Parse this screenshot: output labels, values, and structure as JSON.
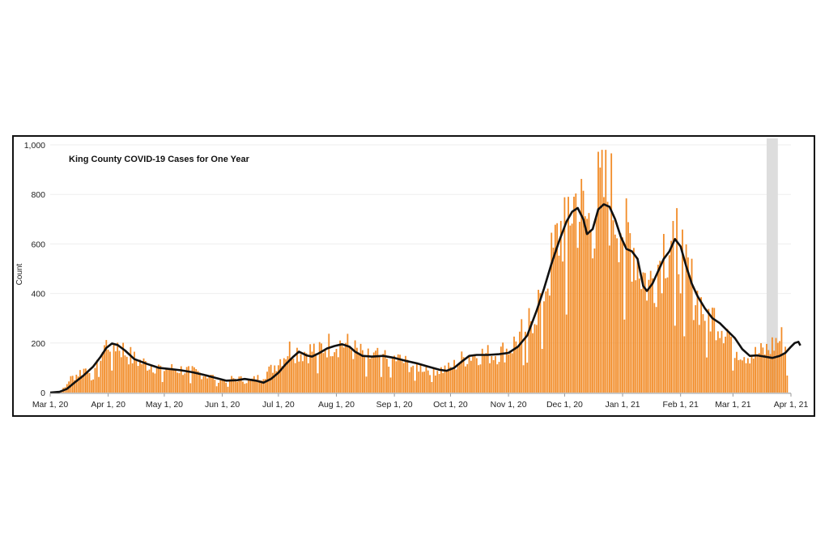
{
  "chart_data": {
    "type": "bar",
    "title": "King County COVID-19 Cases for One Year",
    "ylabel": "Count",
    "xlabel": "",
    "ylim": [
      0,
      1000
    ],
    "yticks": [
      "0",
      "200",
      "400",
      "600",
      "800",
      "1,000"
    ],
    "ytick_values": [
      0,
      200,
      400,
      600,
      800,
      1000
    ],
    "xticks": [
      {
        "label": "Mar 1, 20",
        "day": 0
      },
      {
        "label": "Apr 1, 20",
        "day": 31
      },
      {
        "label": "May 1, 20",
        "day": 61
      },
      {
        "label": "Jun 1, 20",
        "day": 92
      },
      {
        "label": "Jul 1, 20",
        "day": 122
      },
      {
        "label": "Aug 1, 20",
        "day": 153
      },
      {
        "label": "Sep 1, 20",
        "day": 184
      },
      {
        "label": "Oct 1, 20",
        "day": 214
      },
      {
        "label": "Nov 1, 20",
        "day": 245
      },
      {
        "label": "Dec 1, 20",
        "day": 275
      },
      {
        "label": "Jan 1, 21",
        "day": 306
      },
      {
        "label": "Feb 1, 21",
        "day": 337
      },
      {
        "label": "Mar 1, 21",
        "day": 365
      },
      {
        "label": "Apr 1, 21",
        "day": 396
      }
    ],
    "bar_color": "#f28c28",
    "line_color": "#111111",
    "highlight_color": "#dddddd",
    "highlight_range": [
      383,
      389
    ],
    "series": [
      {
        "kind": "bar",
        "day_values_anchors": [
          [
            0,
            0
          ],
          [
            5,
            5
          ],
          [
            8,
            20
          ],
          [
            10,
            50
          ],
          [
            14,
            70
          ],
          [
            18,
            90
          ],
          [
            22,
            110
          ],
          [
            26,
            140
          ],
          [
            29,
            180
          ],
          [
            32,
            200
          ],
          [
            36,
            190
          ],
          [
            40,
            160
          ],
          [
            45,
            130
          ],
          [
            52,
            110
          ],
          [
            60,
            95
          ],
          [
            70,
            90
          ],
          [
            78,
            80
          ],
          [
            85,
            65
          ],
          [
            92,
            50
          ],
          [
            100,
            55
          ],
          [
            106,
            45
          ],
          [
            112,
            60
          ],
          [
            118,
            90
          ],
          [
            124,
            140
          ],
          [
            128,
            170
          ],
          [
            134,
            160
          ],
          [
            140,
            165
          ],
          [
            146,
            180
          ],
          [
            152,
            195
          ],
          [
            158,
            190
          ],
          [
            164,
            160
          ],
          [
            170,
            140
          ],
          [
            178,
            140
          ],
          [
            186,
            130
          ],
          [
            192,
            110
          ],
          [
            200,
            100
          ],
          [
            208,
            90
          ],
          [
            214,
            95
          ],
          [
            220,
            130
          ],
          [
            226,
            150
          ],
          [
            234,
            150
          ],
          [
            240,
            155
          ],
          [
            246,
            175
          ],
          [
            250,
            210
          ],
          [
            256,
            280
          ],
          [
            262,
            370
          ],
          [
            268,
            500
          ],
          [
            272,
            620
          ],
          [
            277,
            720
          ],
          [
            281,
            750
          ],
          [
            284,
            700
          ],
          [
            288,
            660
          ],
          [
            292,
            740
          ],
          [
            296,
            790
          ],
          [
            300,
            760
          ],
          [
            304,
            700
          ],
          [
            308,
            640
          ],
          [
            312,
            580
          ],
          [
            316,
            480
          ],
          [
            320,
            420
          ],
          [
            324,
            480
          ],
          [
            328,
            580
          ],
          [
            332,
            620
          ],
          [
            336,
            580
          ],
          [
            340,
            480
          ],
          [
            344,
            400
          ],
          [
            350,
            320
          ],
          [
            356,
            290
          ],
          [
            362,
            250
          ],
          [
            366,
            180
          ],
          [
            372,
            150
          ],
          [
            378,
            150
          ],
          [
            384,
            170
          ],
          [
            388,
            200
          ],
          [
            391,
            210
          ],
          [
            393,
            180
          ],
          [
            394,
            70
          ]
        ]
      },
      {
        "kind": "line",
        "name": "",
        "day_values_anchors": [
          [
            0,
            0
          ],
          [
            5,
            3
          ],
          [
            9,
            15
          ],
          [
            13,
            40
          ],
          [
            18,
            70
          ],
          [
            23,
            105
          ],
          [
            27,
            145
          ],
          [
            30,
            180
          ],
          [
            33,
            198
          ],
          [
            36,
            192
          ],
          [
            40,
            170
          ],
          [
            45,
            135
          ],
          [
            52,
            115
          ],
          [
            58,
            100
          ],
          [
            64,
            95
          ],
          [
            70,
            90
          ],
          [
            76,
            82
          ],
          [
            82,
            72
          ],
          [
            88,
            60
          ],
          [
            94,
            48
          ],
          [
            100,
            50
          ],
          [
            104,
            55
          ],
          [
            110,
            48
          ],
          [
            114,
            40
          ],
          [
            118,
            55
          ],
          [
            122,
            80
          ],
          [
            126,
            115
          ],
          [
            130,
            145
          ],
          [
            133,
            165
          ],
          [
            137,
            150
          ],
          [
            140,
            145
          ],
          [
            144,
            160
          ],
          [
            148,
            178
          ],
          [
            152,
            188
          ],
          [
            156,
            195
          ],
          [
            160,
            185
          ],
          [
            163,
            165
          ],
          [
            167,
            148
          ],
          [
            172,
            145
          ],
          [
            178,
            148
          ],
          [
            184,
            140
          ],
          [
            190,
            128
          ],
          [
            196,
            118
          ],
          [
            202,
            105
          ],
          [
            208,
            92
          ],
          [
            212,
            88
          ],
          [
            216,
            100
          ],
          [
            220,
            125
          ],
          [
            224,
            148
          ],
          [
            228,
            152
          ],
          [
            234,
            152
          ],
          [
            240,
            155
          ],
          [
            245,
            160
          ],
          [
            250,
            185
          ],
          [
            255,
            230
          ],
          [
            260,
            330
          ],
          [
            264,
            420
          ],
          [
            268,
            520
          ],
          [
            272,
            610
          ],
          [
            276,
            690
          ],
          [
            279,
            730
          ],
          [
            282,
            745
          ],
          [
            285,
            700
          ],
          [
            287,
            640
          ],
          [
            290,
            660
          ],
          [
            293,
            740
          ],
          [
            296,
            760
          ],
          [
            299,
            750
          ],
          [
            302,
            700
          ],
          [
            305,
            630
          ],
          [
            308,
            580
          ],
          [
            311,
            570
          ],
          [
            314,
            540
          ],
          [
            317,
            430
          ],
          [
            319,
            410
          ],
          [
            322,
            440
          ],
          [
            325,
            490
          ],
          [
            328,
            540
          ],
          [
            331,
            570
          ],
          [
            334,
            620
          ],
          [
            337,
            590
          ],
          [
            340,
            510
          ],
          [
            343,
            440
          ],
          [
            346,
            390
          ],
          [
            350,
            340
          ],
          [
            354,
            300
          ],
          [
            358,
            280
          ],
          [
            362,
            250
          ],
          [
            366,
            220
          ],
          [
            370,
            175
          ],
          [
            374,
            148
          ],
          [
            378,
            150
          ],
          [
            382,
            145
          ],
          [
            386,
            140
          ],
          [
            390,
            148
          ],
          [
            393,
            160
          ],
          [
            396,
            185
          ],
          [
            398,
            200
          ],
          [
            400,
            205
          ],
          [
            401,
            190
          ]
        ]
      }
    ]
  }
}
